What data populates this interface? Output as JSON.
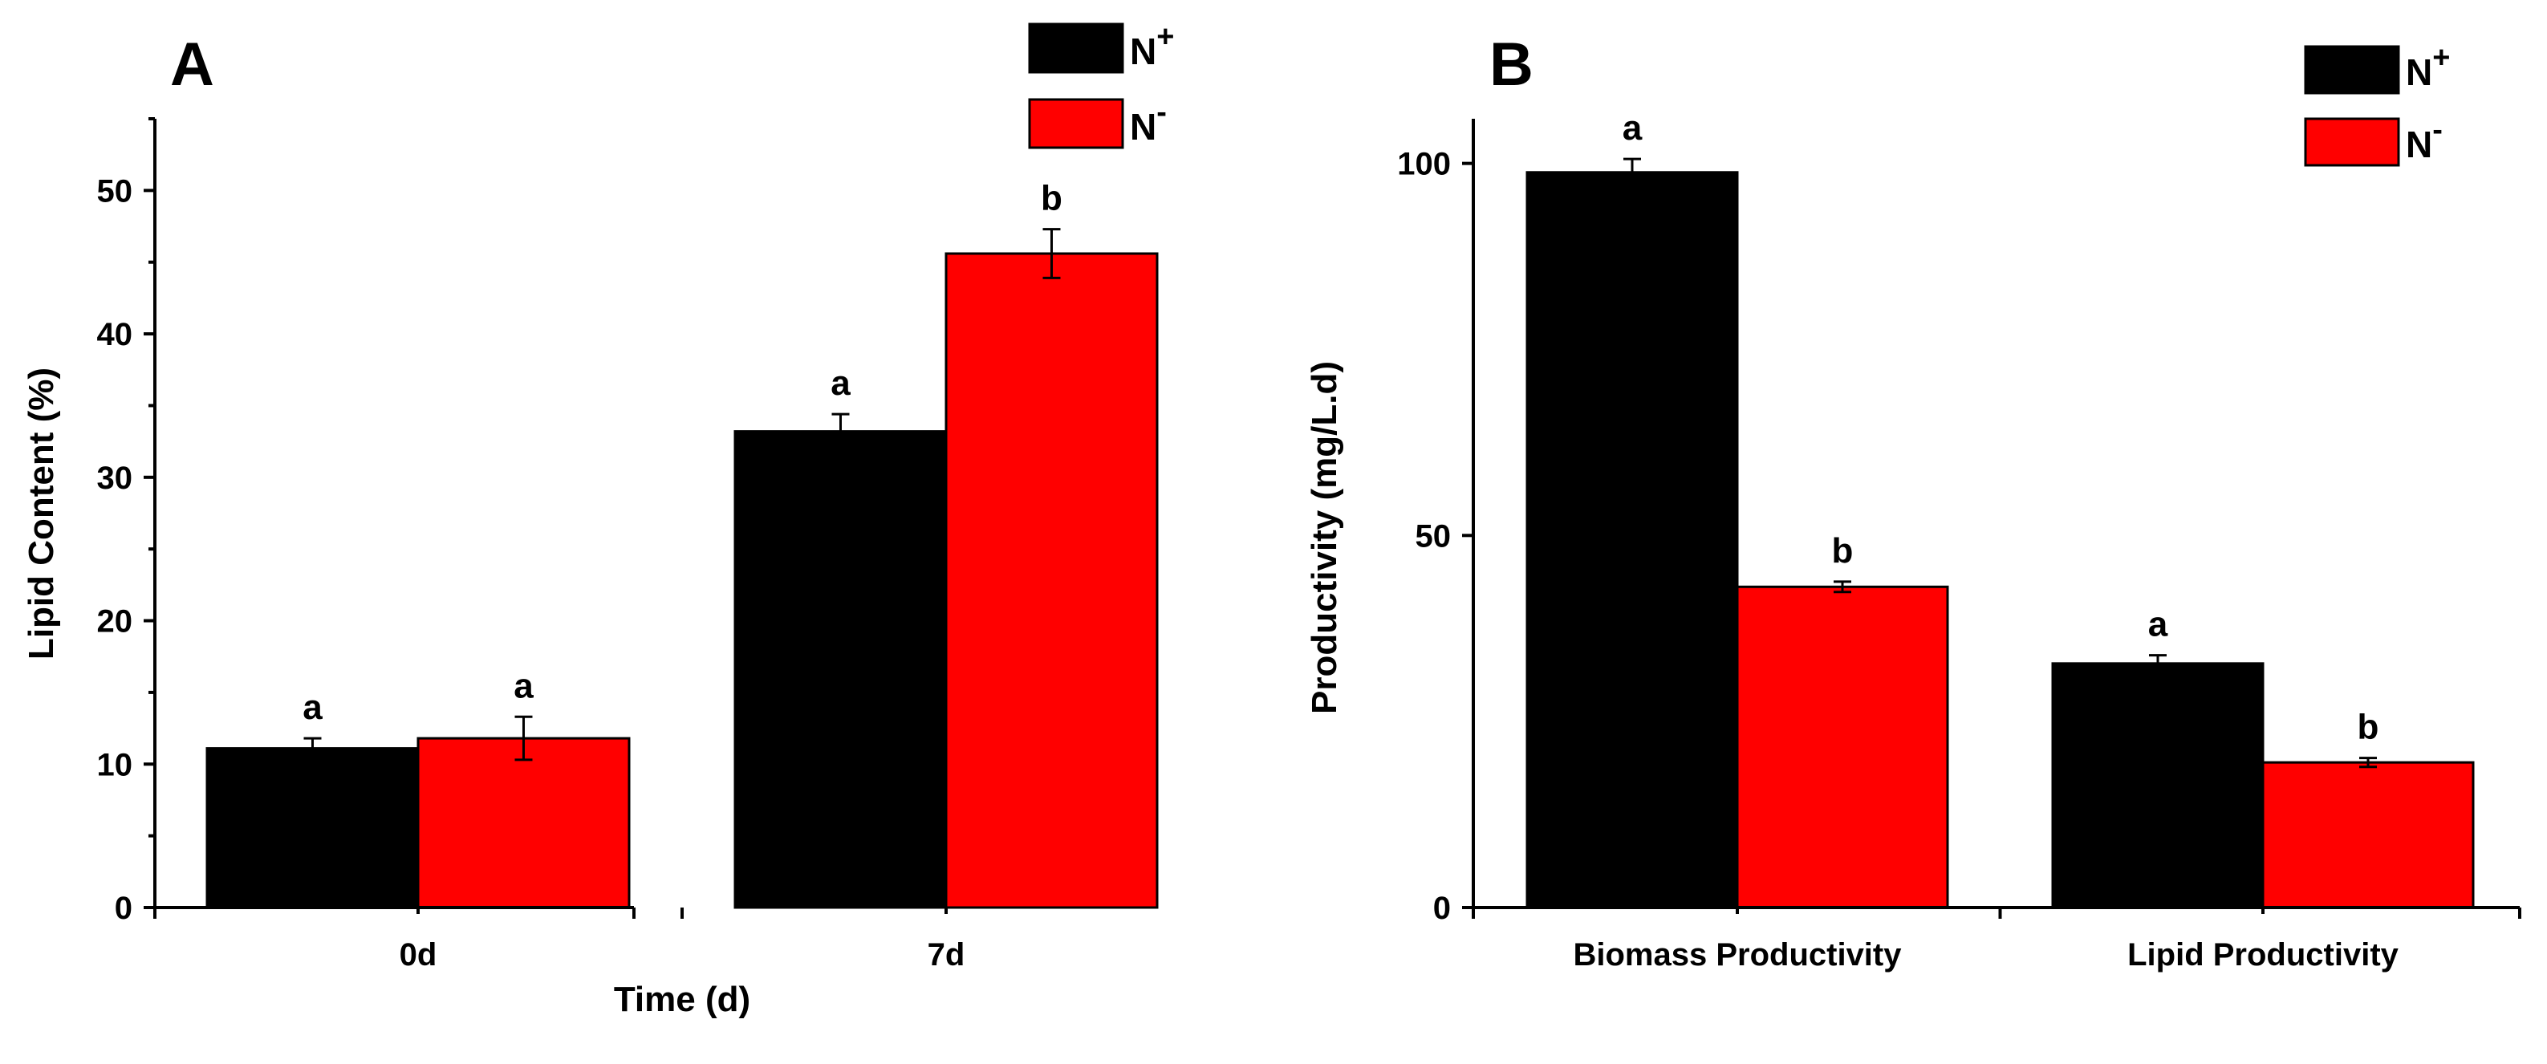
{
  "colors": {
    "n_plus": "#000000",
    "n_minus": "#ff0000"
  },
  "chart_data": [
    {
      "type": "bar",
      "panel": "A",
      "title": "",
      "xlabel": "Time (d)",
      "ylabel": "Lipid Content (%)",
      "categories": [
        "0d",
        "7d"
      ],
      "ylim": [
        0,
        55
      ],
      "yticks": [
        0,
        10,
        20,
        30,
        40,
        50
      ],
      "legend": {
        "placement": "top-right",
        "entries": [
          {
            "base": "N",
            "sup": "+"
          },
          {
            "base": "N",
            "sup": "-"
          }
        ]
      },
      "series": [
        {
          "name": "N+",
          "color": "#000000",
          "values": [
            11.1,
            33.2
          ],
          "errors": [
            0.7,
            1.2
          ],
          "labels": [
            "a",
            "a"
          ]
        },
        {
          "name": "N-",
          "color": "#ff0000",
          "values": [
            11.8,
            45.6
          ],
          "errors": [
            1.5,
            1.7
          ],
          "labels": [
            "a",
            "b"
          ]
        }
      ]
    },
    {
      "type": "bar",
      "panel": "B",
      "title": "",
      "xlabel": "",
      "ylabel": "Productivity (mg/L.d)",
      "categories": [
        "Biomass Productivity",
        "Lipid Productivity"
      ],
      "ylim": [
        0,
        106
      ],
      "yticks": [
        0,
        50,
        100
      ],
      "legend": {
        "placement": "top-right",
        "entries": [
          {
            "base": "N",
            "sup": "+"
          },
          {
            "base": "N",
            "sup": "-"
          }
        ]
      },
      "series": [
        {
          "name": "N+",
          "color": "#000000",
          "values": [
            98.8,
            32.8
          ],
          "errors": [
            1.8,
            1.1
          ],
          "labels": [
            "a",
            "a"
          ]
        },
        {
          "name": "N-",
          "color": "#ff0000",
          "values": [
            43.1,
            19.5
          ],
          "errors": [
            0.7,
            0.6
          ],
          "labels": [
            "b",
            "b"
          ]
        }
      ]
    }
  ]
}
